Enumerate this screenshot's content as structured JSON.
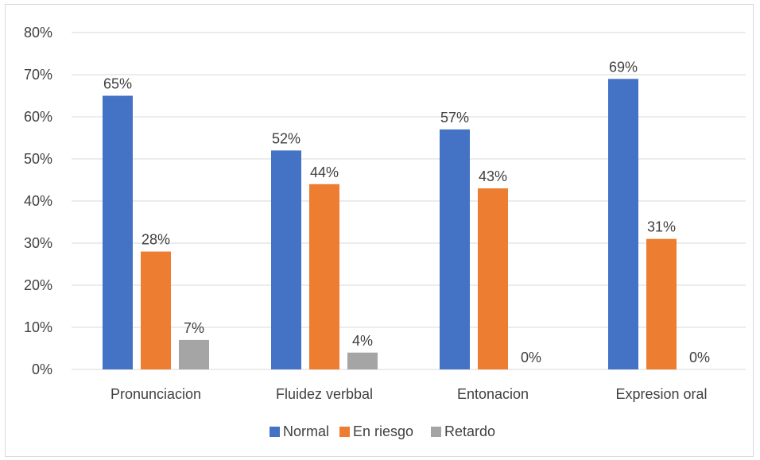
{
  "chart_data": {
    "type": "bar",
    "title": "",
    "xlabel": "",
    "ylabel": "",
    "categories": [
      "Pronunciacion",
      "Fluidez verbbal",
      "Entonacion",
      "Expresion oral"
    ],
    "series": [
      {
        "name": "Normal",
        "values": [
          65,
          52,
          57,
          69
        ],
        "labels": [
          "65%",
          "52%",
          "57%",
          "69%"
        ],
        "color": "#4472c4"
      },
      {
        "name": "En riesgo",
        "values": [
          28,
          44,
          43,
          31
        ],
        "labels": [
          "28%",
          "44%",
          "43%",
          "31%"
        ],
        "color": "#ed7d31"
      },
      {
        "name": "Retardo",
        "values": [
          7,
          4,
          0,
          0
        ],
        "labels": [
          "7%",
          "4%",
          "0%",
          "0%"
        ],
        "color": "#a5a5a5"
      }
    ],
    "ylim": [
      0,
      80
    ],
    "yticks": [
      0,
      10,
      20,
      30,
      40,
      50,
      60,
      70,
      80
    ],
    "ytick_labels": [
      "0%",
      "10%",
      "20%",
      "30%",
      "40%",
      "50%",
      "60%",
      "70%",
      "80%"
    ],
    "grid": true,
    "legend_position": "bottom",
    "gridline_color": "#d9d9d9",
    "axis_line_color": "#d9d9d9"
  }
}
